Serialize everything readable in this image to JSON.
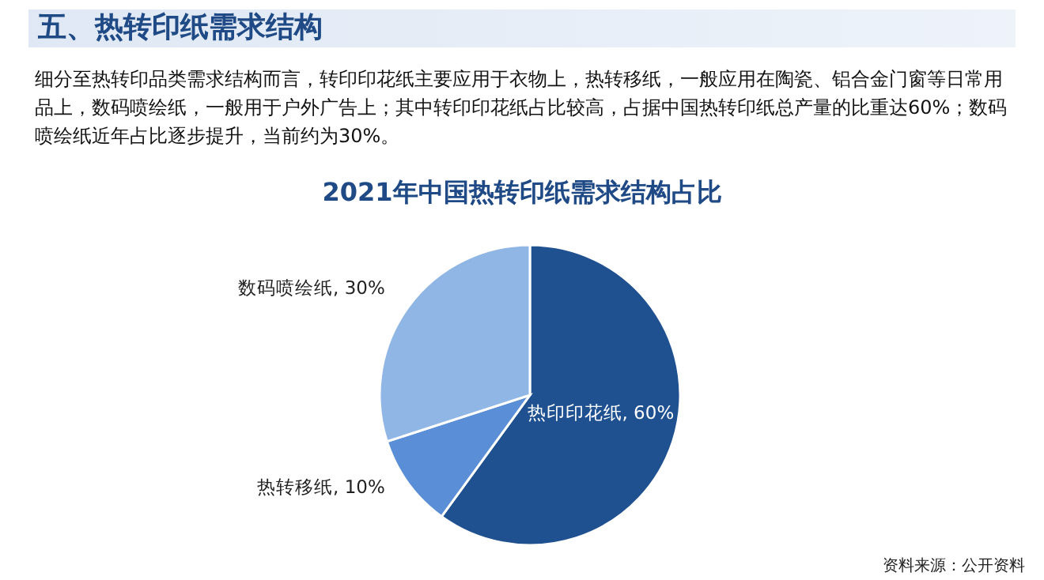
{
  "chart_data": {
    "type": "pie",
    "title": "2021年中国热转印纸需求结构占比",
    "categories": [
      "热印印花纸",
      "热转移纸",
      "数码喷绘纸"
    ],
    "values": [
      60,
      10,
      30
    ],
    "value_labels": [
      "60%",
      "10%",
      "30%"
    ],
    "colors": [
      "#1f5190",
      "#5a8fd8",
      "#8fb6e4"
    ],
    "legend": false,
    "annotations": [
      "五、热转印纸需求结构",
      "细分至热转印品类需求结构而言，转印印花纸主要应用于衣物上，热转移纸，一般应用在陶瓷、铝合金门窗等日常用品上，数码喷绘纸，一般用于户外广告上；其中转印印花纸占比较高，占据中国热转印纸总产量的比重达60%；数码喷绘纸近年占比逐步提升，当前约为30%。",
      "资料来源：公开资料"
    ]
  }
}
